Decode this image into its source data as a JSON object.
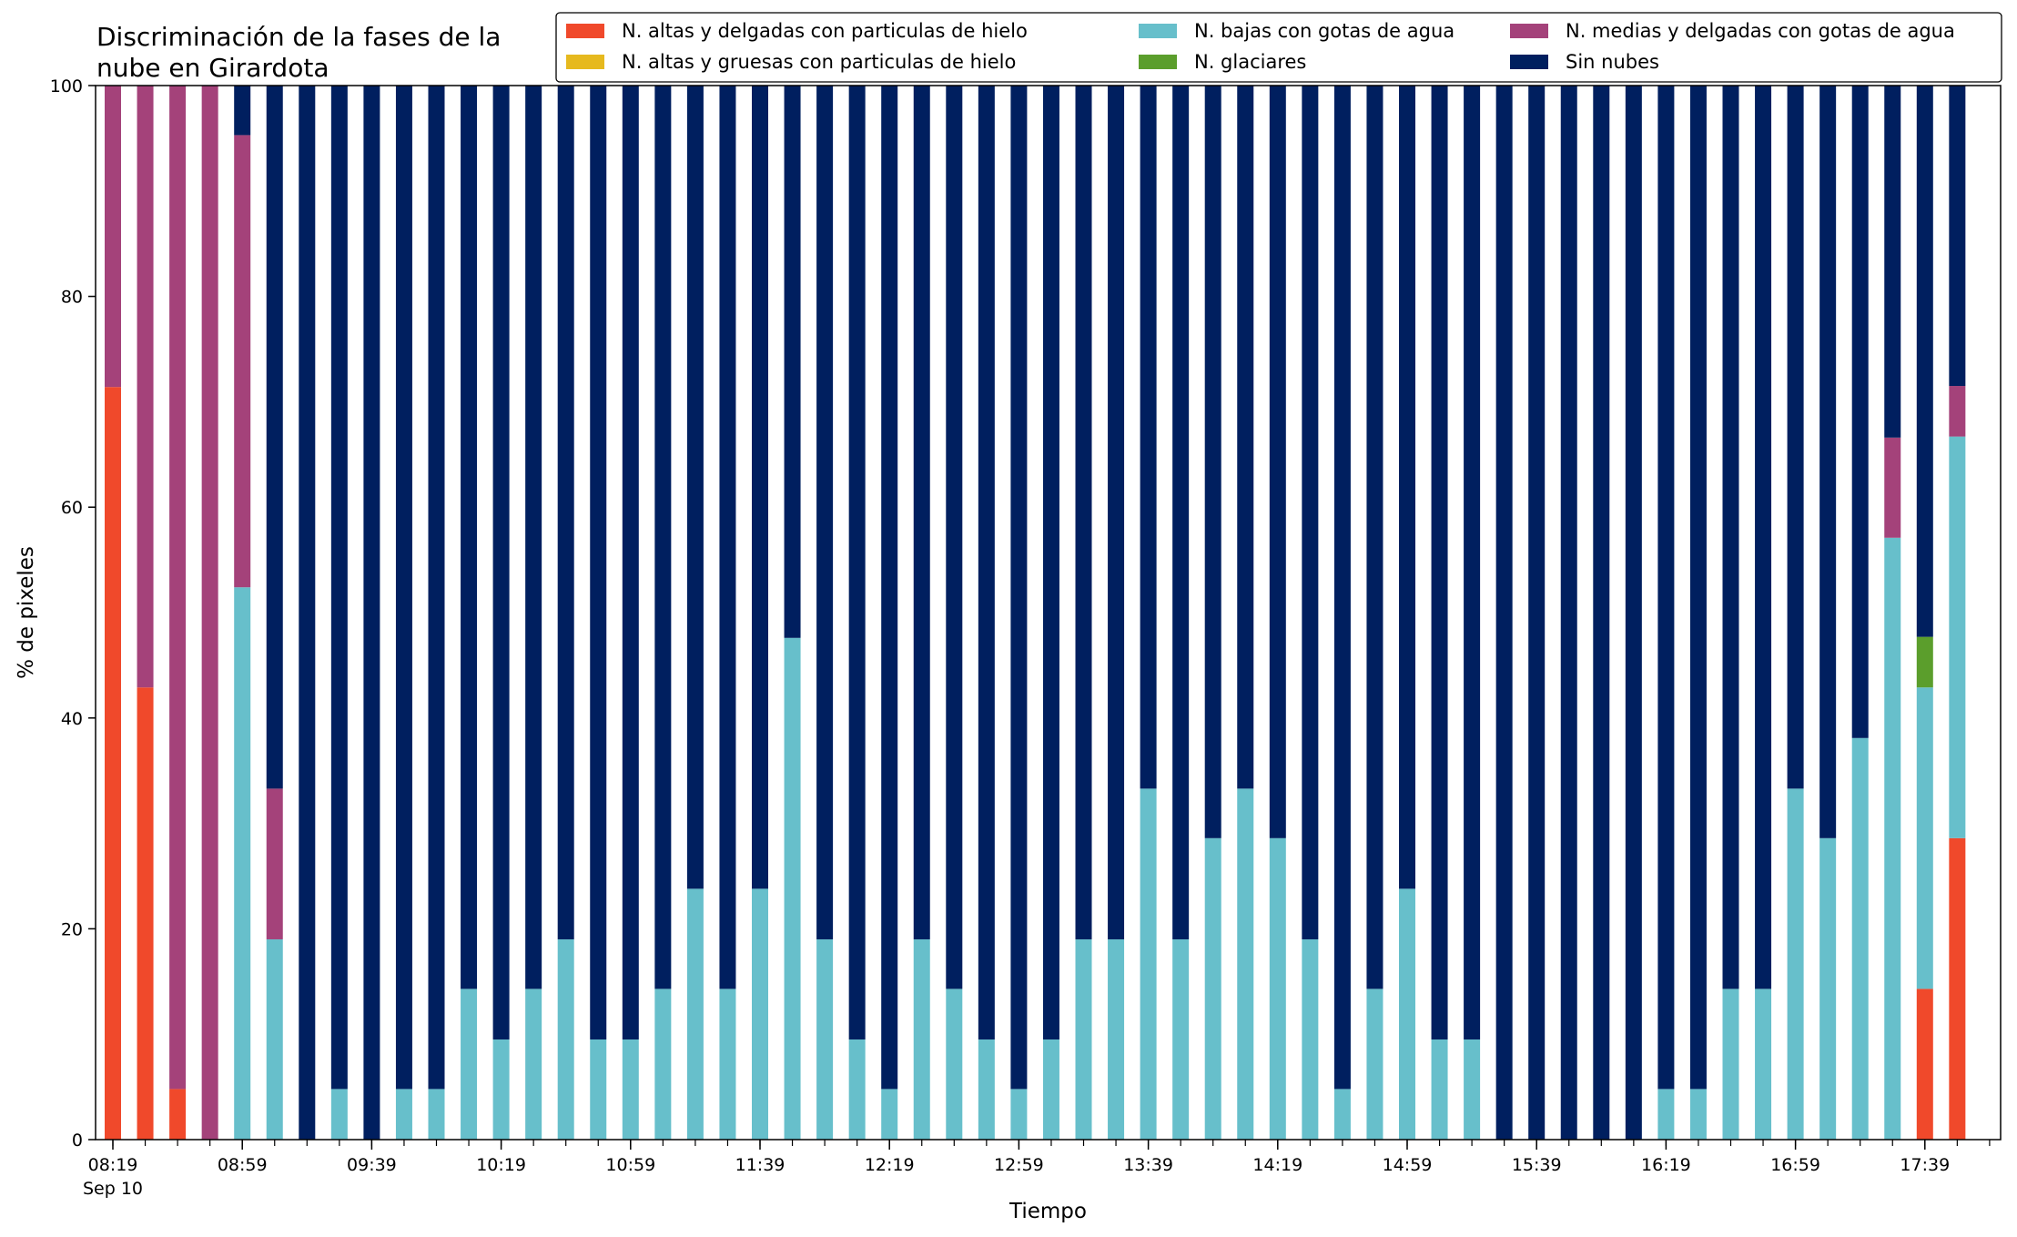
{
  "chart_data": {
    "type": "bar",
    "stacked": true,
    "title": "Discriminación de la fases de la\nnube en Girardota",
    "xlabel": "Tiempo",
    "ylabel": "% de pixeles",
    "ylim": [
      0,
      100
    ],
    "yticks": [
      0,
      20,
      40,
      60,
      80,
      100
    ],
    "grid": false,
    "legend": {
      "placement": "top-right",
      "columns": 3
    },
    "x_start": "08:19",
    "x_step_minutes": 10,
    "x_ticklabels": [
      {
        "index": 0,
        "label": "08:19",
        "sublabel": "Sep 10"
      },
      {
        "index": 4,
        "label": "08:59"
      },
      {
        "index": 8,
        "label": "09:39"
      },
      {
        "index": 12,
        "label": "10:19"
      },
      {
        "index": 16,
        "label": "10:59"
      },
      {
        "index": 20,
        "label": "11:39"
      },
      {
        "index": 24,
        "label": "12:19"
      },
      {
        "index": 28,
        "label": "12:59"
      },
      {
        "index": 32,
        "label": "13:39"
      },
      {
        "index": 36,
        "label": "14:19"
      },
      {
        "index": 40,
        "label": "14:59"
      },
      {
        "index": 44,
        "label": "15:39"
      },
      {
        "index": 48,
        "label": "16:19"
      },
      {
        "index": 52,
        "label": "16:59"
      },
      {
        "index": 56,
        "label": "17:39"
      }
    ],
    "series": [
      {
        "name": "N. altas y delgadas con particulas de hielo",
        "color": "#f0492b",
        "values": [
          71.4,
          42.9,
          4.8,
          0,
          0,
          0,
          0,
          0,
          0,
          0,
          0,
          0,
          0,
          0,
          0,
          0,
          0,
          0,
          0,
          0,
          0,
          0,
          0,
          0,
          0,
          0,
          0,
          0,
          0,
          0,
          0,
          0,
          0,
          0,
          0,
          0,
          0,
          0,
          0,
          0,
          0,
          0,
          0,
          0,
          0,
          0,
          0,
          0,
          0,
          0,
          0,
          0,
          0,
          0,
          0,
          0,
          14.3,
          28.6
        ]
      },
      {
        "name": "N. altas y gruesas con particulas de hielo",
        "color": "#e6b91e",
        "values": [
          0,
          0,
          0,
          0,
          0,
          0,
          0,
          0,
          0,
          0,
          0,
          0,
          0,
          0,
          0,
          0,
          0,
          0,
          0,
          0,
          0,
          0,
          0,
          0,
          0,
          0,
          0,
          0,
          0,
          0,
          0,
          0,
          0,
          0,
          0,
          0,
          0,
          0,
          0,
          0,
          0,
          0,
          0,
          0,
          0,
          0,
          0,
          0,
          0,
          0,
          0,
          0,
          0,
          0,
          0,
          0,
          0,
          0
        ]
      },
      {
        "name": "N. bajas con gotas de agua",
        "color": "#67bfcb",
        "values": [
          0,
          0,
          0,
          0,
          52.4,
          19.0,
          0,
          4.8,
          0,
          4.8,
          4.8,
          14.3,
          9.5,
          14.3,
          19.0,
          9.5,
          9.5,
          14.3,
          23.8,
          14.3,
          23.8,
          47.6,
          19.0,
          9.5,
          4.8,
          19.0,
          14.3,
          9.5,
          4.8,
          9.5,
          19.0,
          19.0,
          33.3,
          19.0,
          28.6,
          33.3,
          28.6,
          19.0,
          4.8,
          14.3,
          23.8,
          9.5,
          9.5,
          0,
          0,
          0,
          0,
          0,
          4.8,
          4.8,
          14.3,
          14.3,
          33.3,
          28.6,
          38.1,
          57.1,
          28.6,
          38.1
        ]
      },
      {
        "name": "N. glaciares",
        "color": "#5b9e2c",
        "values": [
          0,
          0,
          0,
          0,
          0,
          0,
          0,
          0,
          0,
          0,
          0,
          0,
          0,
          0,
          0,
          0,
          0,
          0,
          0,
          0,
          0,
          0,
          0,
          0,
          0,
          0,
          0,
          0,
          0,
          0,
          0,
          0,
          0,
          0,
          0,
          0,
          0,
          0,
          0,
          0,
          0,
          0,
          0,
          0,
          0,
          0,
          0,
          0,
          0,
          0,
          0,
          0,
          0,
          0,
          0,
          0,
          4.8,
          0
        ]
      },
      {
        "name": "N. medias y delgadas con gotas de agua",
        "color": "#a4427a",
        "values": [
          28.6,
          57.1,
          95.2,
          100,
          42.9,
          14.3,
          0,
          0,
          0,
          0,
          0,
          0,
          0,
          0,
          0,
          0,
          0,
          0,
          0,
          0,
          0,
          0,
          0,
          0,
          0,
          0,
          0,
          0,
          0,
          0,
          0,
          0,
          0,
          0,
          0,
          0,
          0,
          0,
          0,
          0,
          0,
          0,
          0,
          0,
          0,
          0,
          0,
          0,
          0,
          0,
          0,
          0,
          0,
          0,
          0,
          9.5,
          0,
          4.8
        ]
      },
      {
        "name": "Sin nubes",
        "color": "#001f5f",
        "values": [
          0,
          0,
          0,
          0,
          4.7,
          66.7,
          100,
          95.2,
          100,
          95.2,
          95.2,
          85.7,
          90.5,
          85.7,
          81.0,
          90.5,
          90.5,
          85.7,
          76.2,
          85.7,
          76.2,
          52.4,
          81.0,
          90.5,
          95.2,
          81.0,
          85.7,
          90.5,
          95.2,
          90.5,
          81.0,
          81.0,
          66.7,
          81.0,
          71.4,
          66.7,
          71.4,
          81.0,
          95.2,
          85.7,
          76.2,
          90.5,
          90.5,
          100,
          100,
          100,
          100,
          100,
          95.2,
          95.2,
          85.7,
          85.7,
          66.7,
          71.4,
          61.9,
          33.4,
          52.3,
          28.5
        ]
      }
    ]
  }
}
